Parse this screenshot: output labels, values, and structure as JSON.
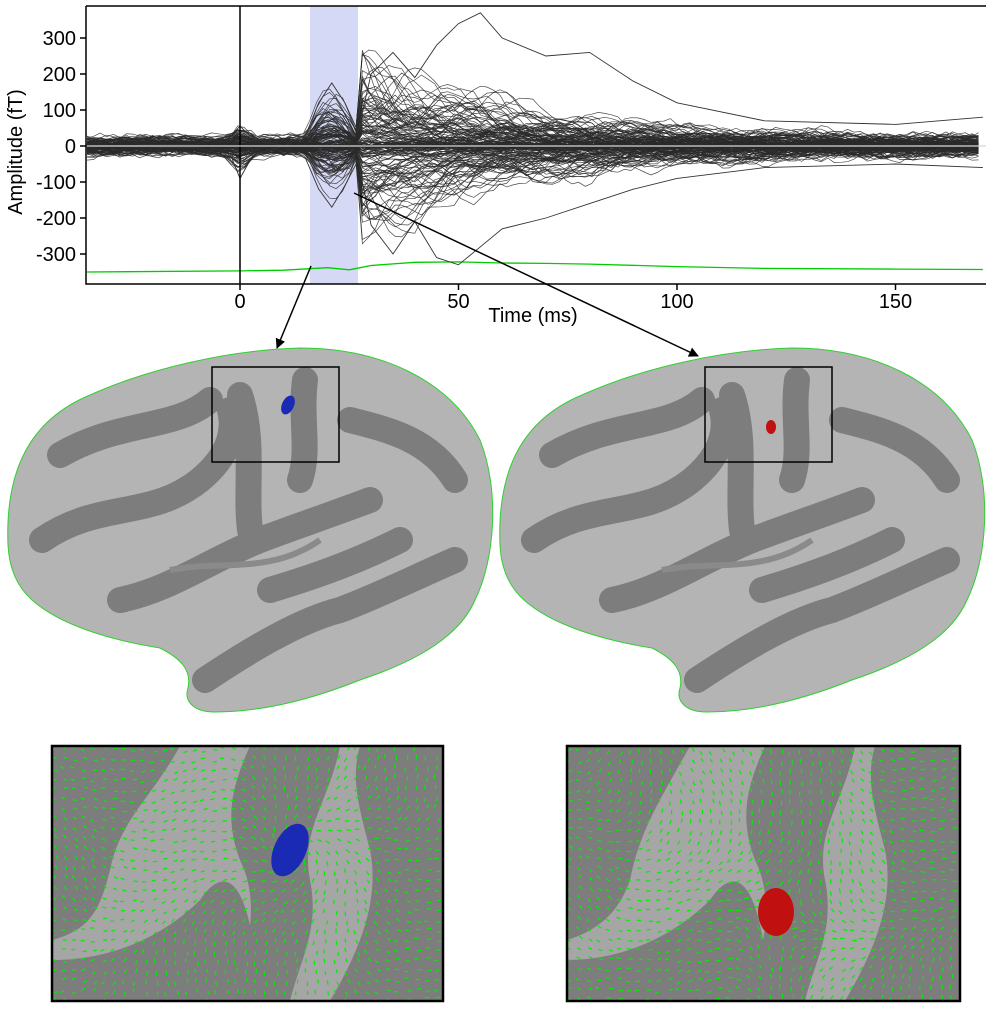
{
  "chart_data": {
    "type": "line",
    "xlabel": "Time (ms)",
    "ylabel": "Amplitude (fT)",
    "xlim": [
      -35,
      170
    ],
    "ylim": [
      -355,
      380
    ],
    "xticks": [
      0,
      50,
      100,
      150
    ],
    "yticks": [
      300,
      200,
      100,
      0,
      -100,
      -200,
      -300
    ],
    "highlight_window": {
      "start": 16,
      "end": 27,
      "color": "#c8ccf2"
    },
    "stimulus_marker": 0,
    "series": [
      {
        "color": "#00cc00",
        "x": [
          -35,
          0,
          10,
          20,
          25,
          30,
          40,
          50,
          60,
          70,
          80,
          100,
          120,
          150,
          170
        ],
        "values": [
          -350,
          -347,
          -345,
          -338,
          -344,
          -332,
          -323,
          -322,
          -325,
          -326,
          -328,
          -335,
          -340,
          -342,
          -343
        ]
      },
      {
        "color": "#333333",
        "x": [
          -35,
          -10,
          -2,
          0,
          3,
          10,
          15,
          18,
          21,
          24,
          27,
          30,
          35,
          40,
          45,
          50,
          55,
          60,
          70,
          80,
          90,
          100,
          120,
          150,
          170
        ],
        "values": [
          0,
          5,
          30,
          55,
          20,
          0,
          30,
          120,
          175,
          120,
          40,
          200,
          260,
          190,
          280,
          340,
          370,
          300,
          250,
          260,
          180,
          120,
          70,
          60,
          80
        ]
      },
      {
        "color": "#333333",
        "x": [
          -35,
          -10,
          -2,
          0,
          3,
          10,
          15,
          18,
          21,
          24,
          27,
          30,
          35,
          40,
          45,
          50,
          55,
          60,
          70,
          80,
          90,
          100,
          120,
          150,
          170
        ],
        "values": [
          0,
          -5,
          -30,
          -90,
          -25,
          0,
          -35,
          -120,
          -170,
          -110,
          -40,
          -220,
          -300,
          -210,
          -310,
          -330,
          -280,
          -230,
          -200,
          -160,
          -120,
          -90,
          -60,
          -50,
          -60
        ]
      }
    ]
  },
  "panels": {
    "pair_left": {
      "activation_color": "#1a2ab5",
      "vector_color": "#00ee00"
    },
    "pair_right": {
      "activation_color": "#c01010",
      "vector_color": "#00ee00"
    }
  }
}
